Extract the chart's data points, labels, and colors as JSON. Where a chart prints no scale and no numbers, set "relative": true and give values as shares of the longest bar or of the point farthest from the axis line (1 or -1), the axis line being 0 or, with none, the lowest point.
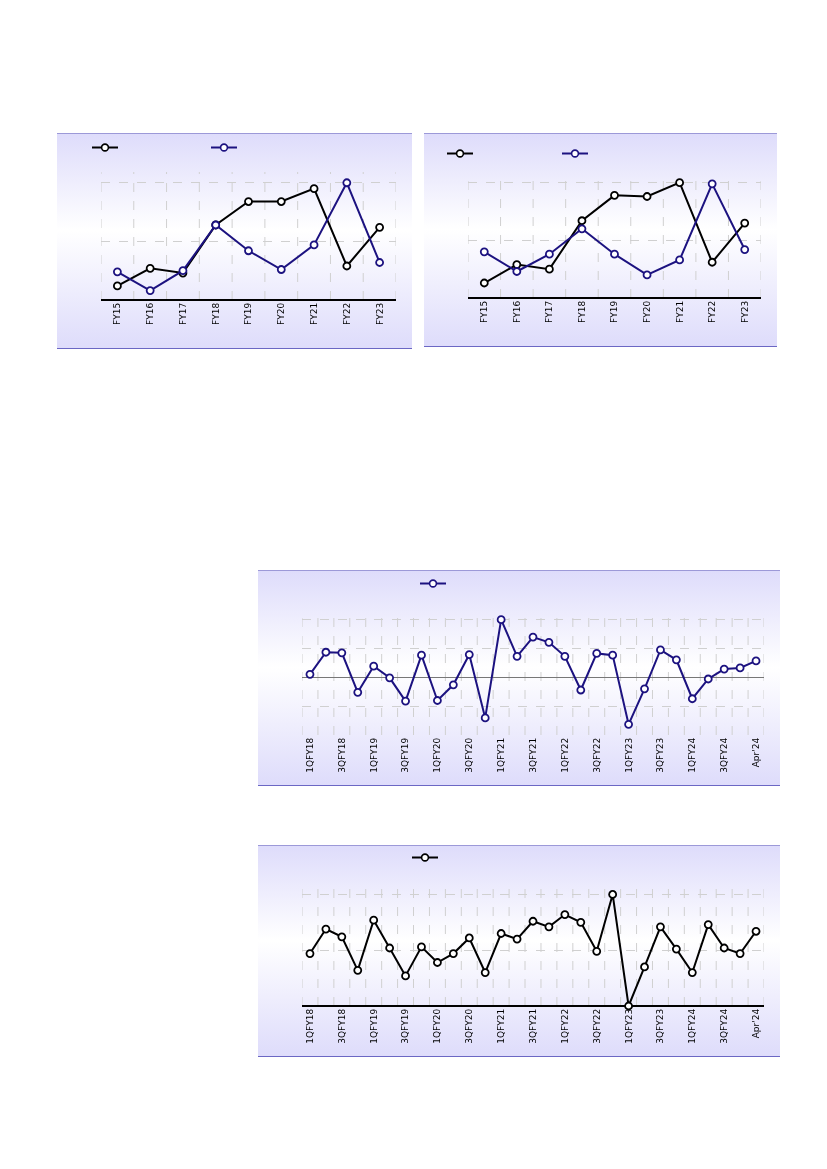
{
  "chart_data": [
    {
      "type": "line",
      "relative": true,
      "grid": true,
      "marker": "circle",
      "line_style": "solid",
      "categories": [
        "FY15",
        "FY16",
        "FY17",
        "FY18",
        "FY19",
        "FY20",
        "FY21",
        "FY22",
        "FY23"
      ],
      "series": [
        {
          "color": "#000000",
          "values": [
            0.12,
            0.27,
            0.23,
            0.64,
            0.84,
            0.84,
            0.95,
            0.29,
            0.62
          ]
        },
        {
          "color": "#1c1280",
          "values": [
            0.24,
            0.08,
            0.25,
            0.64,
            0.42,
            0.26,
            0.47,
            1,
            0.32
          ]
        }
      ]
    },
    {
      "type": "line",
      "relative": true,
      "grid": true,
      "marker": "circle",
      "line_style": "solid",
      "categories": [
        "FY15",
        "FY16",
        "FY17",
        "FY18",
        "FY19",
        "FY20",
        "FY21",
        "FY22",
        "FY23"
      ],
      "series": [
        {
          "color": "#000000",
          "values": [
            0.13,
            0.29,
            0.25,
            0.67,
            0.89,
            0.88,
            1,
            0.31,
            0.65
          ]
        },
        {
          "color": "#1c1280",
          "values": [
            0.4,
            0.23,
            0.38,
            0.6,
            0.38,
            0.2,
            0.33,
            0.99,
            0.42
          ]
        }
      ]
    },
    {
      "type": "line",
      "relative": true,
      "grid": true,
      "marker": "circle",
      "line_style": "solid",
      "categories": [
        "1QFY18",
        null,
        "3QFY18",
        null,
        "1QFY19",
        null,
        "3QFY19",
        null,
        "1QFY20",
        null,
        "3QFY20",
        null,
        "1QFY21",
        null,
        "3QFY21",
        null,
        "1QFY22",
        null,
        "3QFY22",
        null,
        "1QFY23",
        null,
        "3QFY23",
        null,
        "1QFY24",
        null,
        "3QFY24",
        null,
        "Apr'24"
      ],
      "series": [
        {
          "color": "#1c1280",
          "values": [
            0.06,
            0.44,
            0.43,
            -0.25,
            0.2,
            0,
            -0.4,
            0.39,
            -0.39,
            -0.12,
            0.4,
            -0.69,
            1,
            0.37,
            0.7,
            0.61,
            0.37,
            -0.21,
            0.42,
            0.39,
            -0.8,
            -0.19,
            0.48,
            0.31,
            -0.36,
            -0.02,
            0.15,
            0.17,
            0.29
          ]
        }
      ]
    },
    {
      "type": "line",
      "relative": true,
      "grid": true,
      "marker": "circle",
      "line_style": "solid",
      "categories": [
        "1QFY18",
        null,
        "3QFY18",
        null,
        "1QFY19",
        null,
        "3QFY19",
        null,
        "1QFY20",
        null,
        "3QFY20",
        null,
        "1QFY21",
        null,
        "3QFY21",
        null,
        "1QFY22",
        null,
        "3QFY22",
        null,
        "1QFY23",
        null,
        "3QFY23",
        null,
        "1QFY24",
        null,
        "3QFY24",
        null,
        "Apr'24"
      ],
      "series": [
        {
          "color": "#000000",
          "values": [
            0.47,
            0.69,
            0.62,
            0.32,
            0.77,
            0.52,
            0.27,
            0.53,
            0.39,
            0.47,
            0.61,
            0.3,
            0.65,
            0.6,
            0.76,
            0.71,
            0.82,
            0.75,
            0.49,
            1,
            0,
            0.35,
            0.71,
            0.51,
            0.3,
            0.73,
            0.52,
            0.47,
            0.67
          ]
        }
      ]
    }
  ]
}
